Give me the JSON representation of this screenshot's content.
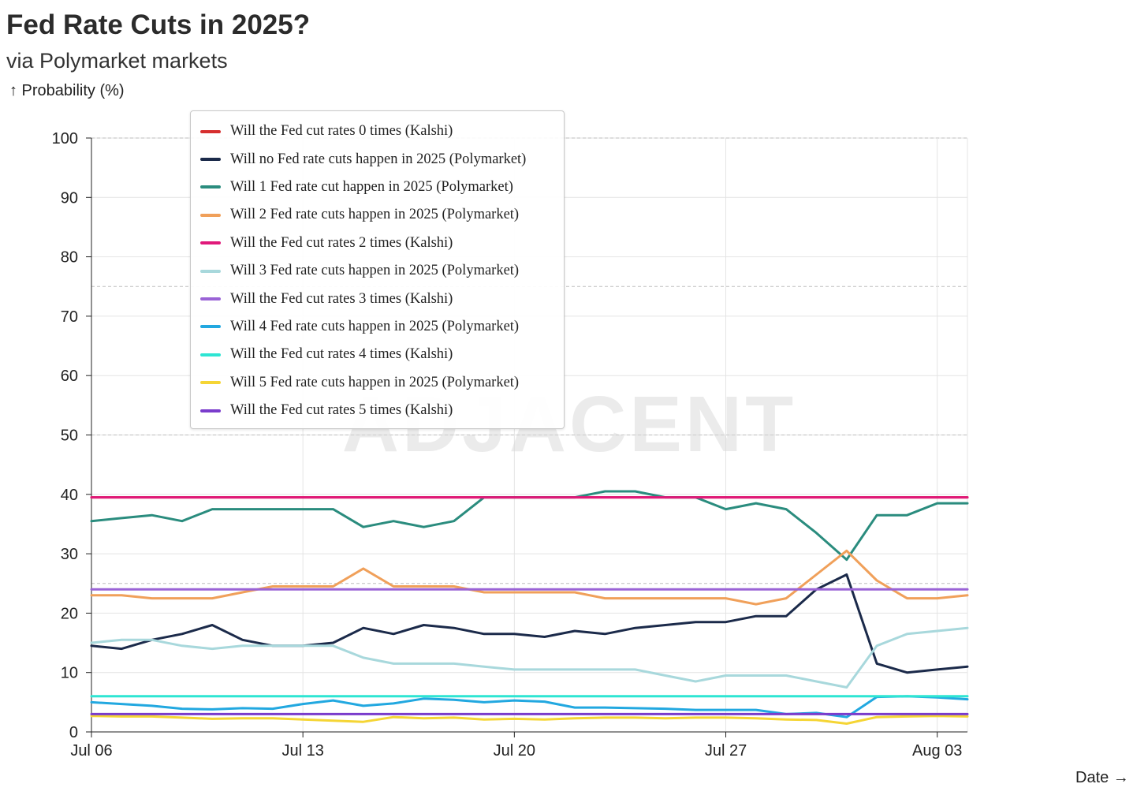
{
  "header": {
    "title": "Fed Rate Cuts in 2025?",
    "subtitle": "via Polymarket markets",
    "y_axis_label": "↑ Probability (%)",
    "x_axis_label": "Date →"
  },
  "watermark": "ADJACENT",
  "chart_data": {
    "type": "line",
    "title": "Fed Rate Cuts in 2025?",
    "subtitle": "via Polymarket markets",
    "xlabel": "Date",
    "ylabel": "Probability (%)",
    "ylim": [
      0,
      100
    ],
    "yticks": [
      0,
      10,
      20,
      30,
      40,
      50,
      60,
      70,
      80,
      90,
      100
    ],
    "xlim": [
      "2025-07-06",
      "2025-08-04"
    ],
    "xticks": [
      {
        "date": "2025-07-06",
        "label": "Jul 06"
      },
      {
        "date": "2025-07-13",
        "label": "Jul 13"
      },
      {
        "date": "2025-07-20",
        "label": "Jul 20"
      },
      {
        "date": "2025-07-27",
        "label": "Jul 27"
      },
      {
        "date": "2025-08-03",
        "label": "Aug 03"
      }
    ],
    "grid": true,
    "legend_position": "top-left",
    "x": [
      "2025-07-06",
      "2025-07-07",
      "2025-07-08",
      "2025-07-09",
      "2025-07-10",
      "2025-07-11",
      "2025-07-12",
      "2025-07-13",
      "2025-07-14",
      "2025-07-15",
      "2025-07-16",
      "2025-07-17",
      "2025-07-18",
      "2025-07-19",
      "2025-07-20",
      "2025-07-21",
      "2025-07-22",
      "2025-07-23",
      "2025-07-24",
      "2025-07-25",
      "2025-07-26",
      "2025-07-27",
      "2025-07-28",
      "2025-07-29",
      "2025-07-30",
      "2025-07-31",
      "2025-08-01",
      "2025-08-02",
      "2025-08-03",
      "2025-08-04"
    ],
    "series": [
      {
        "name": "Will the Fed cut rates 0 times (Kalshi)",
        "color": "#d62f2f",
        "values": [
          39.5,
          39.5,
          39.5,
          39.5,
          39.5,
          39.5,
          39.5,
          39.5,
          39.5,
          39.5,
          39.5,
          39.5,
          39.5,
          39.5,
          39.5,
          39.5,
          39.5,
          39.5,
          39.5,
          39.5,
          39.5,
          39.5,
          39.5,
          39.5,
          39.5,
          39.5,
          39.5,
          39.5,
          39.5,
          39.5
        ]
      },
      {
        "name": "Will no Fed rate cuts happen in 2025 (Polymarket)",
        "color": "#1b2a4a",
        "values": [
          14.5,
          14,
          15.5,
          16.5,
          18,
          15.5,
          14.5,
          14.5,
          15,
          17.5,
          16.5,
          18,
          17.5,
          16.5,
          16.5,
          16,
          17,
          16.5,
          17.5,
          18,
          18.5,
          18.5,
          19.5,
          19.5,
          24,
          26.5,
          11.5,
          10,
          10.5,
          11
        ]
      },
      {
        "name": "Will 1 Fed rate cut happen in 2025 (Polymarket)",
        "color": "#2a8c7e",
        "values": [
          35.5,
          36,
          36.5,
          35.5,
          37.5,
          37.5,
          37.5,
          37.5,
          37.5,
          34.5,
          35.5,
          34.5,
          35.5,
          39.5,
          39.5,
          39.5,
          39.5,
          40.5,
          40.5,
          39.5,
          39.5,
          37.5,
          38.5,
          37.5,
          33.5,
          29,
          36.5,
          36.5,
          38.5,
          38.5
        ]
      },
      {
        "name": "Will 2 Fed rate cuts happen in 2025 (Polymarket)",
        "color": "#f0a05a",
        "values": [
          23,
          23,
          22.5,
          22.5,
          22.5,
          23.5,
          24.5,
          24.5,
          24.5,
          27.5,
          24.5,
          24.5,
          24.5,
          23.5,
          23.5,
          23.5,
          23.5,
          22.5,
          22.5,
          22.5,
          22.5,
          22.5,
          21.5,
          22.5,
          26.5,
          30.5,
          25.5,
          22.5,
          22.5,
          23
        ]
      },
      {
        "name": "Will the Fed cut rates 2 times (Kalshi)",
        "color": "#e0197a",
        "values": [
          39.5,
          39.5,
          39.5,
          39.5,
          39.5,
          39.5,
          39.5,
          39.5,
          39.5,
          39.5,
          39.5,
          39.5,
          39.5,
          39.5,
          39.5,
          39.5,
          39.5,
          39.5,
          39.5,
          39.5,
          39.5,
          39.5,
          39.5,
          39.5,
          39.5,
          39.5,
          39.5,
          39.5,
          39.5,
          39.5
        ]
      },
      {
        "name": "Will 3 Fed rate cuts happen in 2025 (Polymarket)",
        "color": "#a8d8dc",
        "values": [
          15,
          15.5,
          15.5,
          14.5,
          14,
          14.5,
          14.5,
          14.5,
          14.5,
          12.5,
          11.5,
          11.5,
          11.5,
          11,
          10.5,
          10.5,
          10.5,
          10.5,
          10.5,
          9.5,
          8.5,
          9.5,
          9.5,
          9.5,
          8.5,
          7.5,
          14.5,
          16.5,
          17,
          17.5
        ]
      },
      {
        "name": "Will the Fed cut rates 3 times (Kalshi)",
        "color": "#9a63d6",
        "values": [
          24,
          24,
          24,
          24,
          24,
          24,
          24,
          24,
          24,
          24,
          24,
          24,
          24,
          24,
          24,
          24,
          24,
          24,
          24,
          24,
          24,
          24,
          24,
          24,
          24,
          24,
          24,
          24,
          24,
          24
        ]
      },
      {
        "name": "Will 4 Fed rate cuts happen in 2025 (Polymarket)",
        "color": "#22a8e0",
        "values": [
          5,
          4.7,
          4.4,
          3.9,
          3.8,
          4,
          3.9,
          4.7,
          5.3,
          4.4,
          4.8,
          5.6,
          5.4,
          5,
          5.3,
          5.1,
          4.1,
          4.1,
          4,
          3.9,
          3.7,
          3.7,
          3.7,
          3,
          3.2,
          2.5,
          5.9,
          6,
          5.8,
          5.5
        ]
      },
      {
        "name": "Will the Fed cut rates 4 times (Kalshi)",
        "color": "#2ee5d3",
        "values": [
          6,
          6,
          6,
          6,
          6,
          6,
          6,
          6,
          6,
          6,
          6,
          6,
          6,
          6,
          6,
          6,
          6,
          6,
          6,
          6,
          6,
          6,
          6,
          6,
          6,
          6,
          6,
          6,
          6,
          6
        ]
      },
      {
        "name": "Will 5 Fed rate cuts happen in 2025 (Polymarket)",
        "color": "#f5d535",
        "values": [
          2.7,
          2.6,
          2.6,
          2.4,
          2.2,
          2.3,
          2.3,
          2.1,
          1.9,
          1.7,
          2.5,
          2.3,
          2.4,
          2.1,
          2.2,
          2.1,
          2.3,
          2.4,
          2.4,
          2.3,
          2.4,
          2.4,
          2.3,
          2.1,
          2,
          1.4,
          2.5,
          2.6,
          2.7,
          2.6
        ]
      },
      {
        "name": "Will the Fed cut rates 5 times (Kalshi)",
        "color": "#7a3ccc",
        "values": [
          3,
          3,
          3,
          3,
          3,
          3,
          3,
          3,
          3,
          3,
          3,
          3,
          3,
          3,
          3,
          3,
          3,
          3,
          3,
          3,
          3,
          3,
          3,
          3,
          3,
          3,
          3,
          3,
          3,
          3
        ]
      }
    ]
  }
}
